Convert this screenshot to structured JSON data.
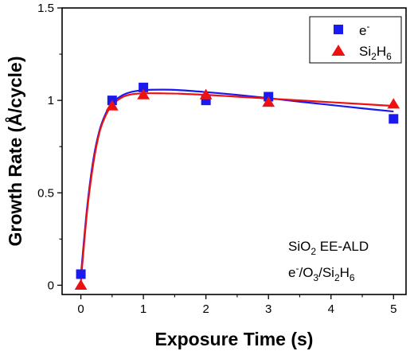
{
  "chart_data": {
    "type": "scatter",
    "xlabel": "Exposure Time (s)",
    "ylabel": "Growth Rate (Å/cycle)",
    "xlim": [
      -0.3,
      5.2
    ],
    "ylim": [
      -0.05,
      1.5
    ],
    "xticks": [
      0,
      1,
      2,
      3,
      4,
      5
    ],
    "xtick_labels": [
      "0",
      "1",
      "2",
      "3",
      "4",
      "5"
    ],
    "yticks": [
      0,
      0.5,
      1,
      1.5
    ],
    "ytick_labels": [
      "0",
      "0.5",
      "1",
      "1.5"
    ],
    "grid": false,
    "legend_position": "top-right",
    "series": [
      {
        "label_main": "e",
        "label_sup": "-",
        "marker": "square",
        "color": "#1a1aee",
        "x": [
          0,
          0.5,
          1,
          2,
          3,
          5
        ],
        "y": [
          0.06,
          1.0,
          1.07,
          1.0,
          1.02,
          0.9
        ]
      },
      {
        "label_parts": [
          "Si",
          "2",
          "H",
          "6"
        ],
        "marker": "triangle",
        "color": "#ee1111",
        "x": [
          0,
          0.5,
          1,
          2,
          3,
          5
        ],
        "y": [
          0.0,
          0.97,
          1.03,
          1.03,
          0.99,
          0.98
        ]
      }
    ],
    "fit_curves": [
      {
        "color": "#1a1aee",
        "x": [
          0,
          0.1,
          0.2,
          0.3,
          0.4,
          0.5,
          0.65,
          0.8,
          1.0,
          1.3,
          1.6,
          2.0,
          2.5,
          3.0,
          3.5,
          4.0,
          4.5,
          5.0
        ],
        "y": [
          0.05,
          0.42,
          0.68,
          0.84,
          0.93,
          0.985,
          1.025,
          1.045,
          1.055,
          1.058,
          1.055,
          1.045,
          1.03,
          1.012,
          0.993,
          0.975,
          0.957,
          0.94
        ]
      },
      {
        "color": "#ee1111",
        "x": [
          0,
          0.1,
          0.2,
          0.3,
          0.4,
          0.5,
          0.65,
          0.8,
          1.0,
          1.3,
          1.6,
          2.0,
          2.5,
          3.0,
          3.5,
          4.0,
          4.5,
          5.0
        ],
        "y": [
          0.02,
          0.4,
          0.66,
          0.83,
          0.92,
          0.975,
          1.015,
          1.032,
          1.038,
          1.038,
          1.036,
          1.03,
          1.02,
          1.01,
          1.0,
          0.99,
          0.98,
          0.97
        ]
      }
    ],
    "annotation": {
      "line1_parts": [
        "SiO",
        "2",
        " EE-ALD"
      ],
      "line2_parts": [
        "e",
        "-",
        "/O",
        "3",
        "/Si",
        "2",
        "H",
        "6"
      ]
    }
  }
}
